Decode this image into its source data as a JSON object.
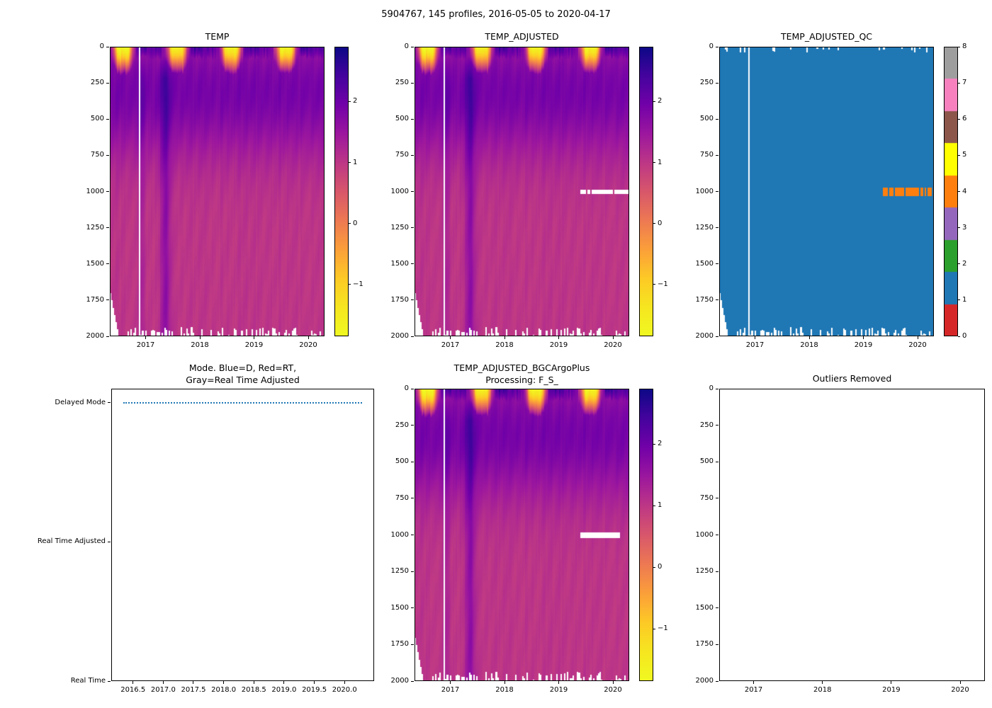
{
  "figure": {
    "title": "5904767, 145 profiles, 2016-05-05 to 2020-04-17",
    "platform_id": "5904767",
    "n_profiles": 145,
    "date_start": "2016-05-05",
    "date_end": "2020-04-17",
    "background": "#ffffff"
  },
  "chart_data": [
    {
      "id": "temp",
      "type": "heatmap",
      "title": "TEMP",
      "x_range": [
        2016.34,
        2020.3
      ],
      "x_tick_labels": [
        "2017",
        "2018",
        "2019",
        "2020"
      ],
      "x_tick_values": [
        2017,
        2018,
        2019,
        2020
      ],
      "y_range": [
        0,
        2000
      ],
      "y_inverted": true,
      "y_tick_labels": [
        "0",
        "250",
        "500",
        "750",
        "1000",
        "1250",
        "1500",
        "1750",
        "2000"
      ],
      "y_tick_values": [
        0,
        250,
        500,
        750,
        1000,
        1250,
        1500,
        1750,
        2000
      ],
      "colorbar": {
        "colormap": "plasma_reversed",
        "vmin": -1.85,
        "vmax": 2.9,
        "tick_labels": [
          "2",
          "1",
          "0",
          "−1"
        ],
        "tick_values": [
          2,
          1,
          0,
          -1
        ]
      },
      "profile_summary": {
        "depths_m": [
          0,
          50,
          150,
          300,
          500,
          1000,
          1500,
          2000
        ],
        "summer_temp_c": [
          2.6,
          2.1,
          1.8,
          1.9,
          1.6,
          1.25,
          1.1,
          1.0
        ],
        "winter_temp_c": [
          -1.8,
          -1.6,
          0.3,
          1.9,
          1.6,
          1.25,
          1.1,
          1.0
        ]
      },
      "features": {
        "missing_profile_time": 2016.9,
        "warm_anomaly_time": 2017.37,
        "secondary_anomaly_time": 2016.93,
        "first_profiles_shallow_to_m": 1700,
        "typical_max_depth_m": 2000
      }
    },
    {
      "id": "temp_adjusted",
      "type": "heatmap",
      "title": "TEMP_ADJUSTED",
      "x_range": [
        2016.34,
        2020.3
      ],
      "x_tick_labels": [
        "2017",
        "2018",
        "2019",
        "2020"
      ],
      "x_tick_values": [
        2017,
        2018,
        2019,
        2020
      ],
      "y_range": [
        0,
        2000
      ],
      "y_inverted": true,
      "y_tick_labels": [
        "0",
        "250",
        "500",
        "750",
        "1000",
        "1250",
        "1500",
        "1750",
        "2000"
      ],
      "y_tick_values": [
        0,
        250,
        500,
        750,
        1000,
        1250,
        1500,
        1750,
        2000
      ],
      "colorbar": {
        "colormap": "plasma_reversed",
        "vmin": -1.85,
        "vmax": 2.9,
        "tick_labels": [
          "2",
          "1",
          "0",
          "−1"
        ],
        "tick_values": [
          2,
          1,
          0,
          -1
        ]
      },
      "masked_band": {
        "depth_m": 1000,
        "time_start": 2019.38,
        "time_end": 2020.3,
        "style": "dashed-white"
      },
      "profile_summary": {
        "depths_m": [
          0,
          50,
          150,
          300,
          500,
          1000,
          1500,
          2000
        ],
        "summer_temp_c": [
          2.6,
          2.1,
          1.8,
          1.9,
          1.6,
          1.25,
          1.1,
          1.0
        ],
        "winter_temp_c": [
          -1.8,
          -1.6,
          0.3,
          1.9,
          1.6,
          1.25,
          1.1,
          1.0
        ]
      },
      "features": {
        "missing_profile_time": 2016.9,
        "warm_anomaly_time": 2017.37,
        "secondary_anomaly_time": 2016.93,
        "first_profiles_shallow_to_m": 1700,
        "typical_max_depth_m": 2000
      }
    },
    {
      "id": "temp_adjusted_qc",
      "type": "heatmap-categorical",
      "title": "TEMP_ADJUSTED_QC",
      "x_range": [
        2016.34,
        2020.3
      ],
      "x_tick_labels": [
        "2017",
        "2018",
        "2019",
        "2020"
      ],
      "x_tick_values": [
        2017,
        2018,
        2019,
        2020
      ],
      "y_range": [
        0,
        2000
      ],
      "y_inverted": true,
      "y_tick_labels": [
        "0",
        "250",
        "500",
        "750",
        "1000",
        "1250",
        "1500",
        "1750",
        "2000"
      ],
      "y_tick_values": [
        0,
        250,
        500,
        750,
        1000,
        1250,
        1500,
        1750,
        2000
      ],
      "fill_value": 1,
      "anomaly": {
        "value": 4,
        "depth_m": 1000,
        "time_start": 2019.38,
        "time_end": 2020.3
      },
      "colorbar": {
        "tick_labels": [
          "0",
          "1",
          "2",
          "3",
          "4",
          "5",
          "6",
          "7",
          "8"
        ],
        "tick_values": [
          0,
          1,
          2,
          3,
          4,
          5,
          6,
          7,
          8
        ],
        "colors_low_to_high": [
          "#d62728",
          "#1f77b4",
          "#2ca02c",
          "#9467bd",
          "#ff7f0e",
          "#ffff00",
          "#8c564b",
          "#f781bf",
          "#9e9e9e"
        ]
      },
      "features": {
        "missing_profile_time": 2016.9,
        "first_profiles_shallow_to_m": 1700,
        "typical_max_depth_m": 2000
      }
    },
    {
      "id": "mode",
      "type": "line",
      "title_line1": "Mode. Blue=D, Red=RT,",
      "title_line2": "Gray=Real Time Adjusted",
      "x_range": [
        2016.14,
        2020.49
      ],
      "x_tick_labels": [
        "2016.5",
        "2017.0",
        "2017.5",
        "2018.0",
        "2018.5",
        "2019.0",
        "2019.5",
        "2020.0"
      ],
      "x_tick_values": [
        2016.5,
        2017.0,
        2017.5,
        2018.0,
        2018.5,
        2019.0,
        2019.5,
        2020.0
      ],
      "y_categories": [
        "Delayed Mode",
        "Real Time Adjusted",
        "Real Time"
      ],
      "y_category_values": [
        2,
        1,
        0
      ],
      "y_lim": [
        0,
        2.1
      ],
      "series": [
        {
          "name": "mode",
          "category": "Delayed Mode",
          "color": "#1f77b4",
          "line_style": "dotted",
          "x_start": 2016.34,
          "x_end": 2020.29
        }
      ]
    },
    {
      "id": "temp_adjusted_bgc",
      "type": "heatmap",
      "title_line1": "TEMP_ADJUSTED_BGCArgoPlus",
      "title_line2": "Processing: F_S_",
      "x_range": [
        2016.34,
        2020.3
      ],
      "x_tick_labels": [
        "2017",
        "2018",
        "2019",
        "2020"
      ],
      "x_tick_values": [
        2017,
        2018,
        2019,
        2020
      ],
      "y_range": [
        0,
        2000
      ],
      "y_inverted": true,
      "y_tick_labels": [
        "0",
        "250",
        "500",
        "750",
        "1000",
        "1250",
        "1500",
        "1750",
        "2000"
      ],
      "y_tick_values": [
        0,
        250,
        500,
        750,
        1000,
        1250,
        1500,
        1750,
        2000
      ],
      "colorbar": {
        "colormap": "plasma_reversed",
        "vmin": -1.85,
        "vmax": 2.9,
        "tick_labels": [
          "2",
          "1",
          "0",
          "−1"
        ],
        "tick_values": [
          2,
          1,
          0,
          -1
        ]
      },
      "masked_band": {
        "depth_m": 1000,
        "time_start": 2019.4,
        "time_end": 2020.13,
        "style": "solid-white"
      },
      "profile_summary": {
        "depths_m": [
          0,
          50,
          150,
          300,
          500,
          1000,
          1500,
          2000
        ],
        "summer_temp_c": [
          2.6,
          2.1,
          1.8,
          1.9,
          1.6,
          1.25,
          1.1,
          1.0
        ],
        "winter_temp_c": [
          -1.8,
          -1.6,
          0.3,
          1.9,
          1.6,
          1.25,
          1.1,
          1.0
        ]
      },
      "features": {
        "missing_profile_time": 2016.9,
        "warm_anomaly_time": 2017.37,
        "secondary_anomaly_time": 2016.93,
        "first_profiles_shallow_to_m": 1700,
        "typical_max_depth_m": 2000
      }
    },
    {
      "id": "outliers_removed",
      "type": "empty",
      "title": "Outliers Removed",
      "x_range": [
        2016.5,
        2020.36
      ],
      "x_tick_labels": [
        "2017",
        "2018",
        "2019",
        "2020"
      ],
      "x_tick_values": [
        2017,
        2018,
        2019,
        2020
      ],
      "y_range": [
        0,
        2000
      ],
      "y_inverted": true,
      "y_tick_labels": [
        "0",
        "250",
        "500",
        "750",
        "1000",
        "1250",
        "1500",
        "1750",
        "2000"
      ],
      "y_tick_values": [
        0,
        250,
        500,
        750,
        1000,
        1250,
        1500,
        1750,
        2000
      ]
    }
  ]
}
